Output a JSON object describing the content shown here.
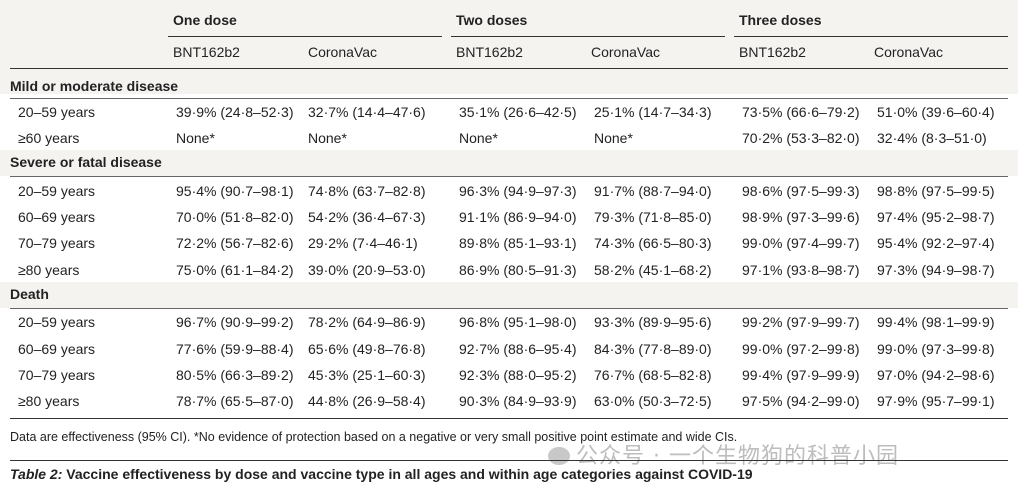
{
  "table": {
    "groups": [
      "One dose",
      "Two doses",
      "Three doses"
    ],
    "vaccines": [
      "BNT162b2",
      "CoronaVac",
      "BNT162b2",
      "CoronaVac",
      "BNT162b2",
      "CoronaVac"
    ],
    "sections": [
      {
        "title": "Mild or moderate disease",
        "rows": [
          {
            "label": "20–59 years",
            "cells": [
              "39·9% (24·8–52·3)",
              "32·7% (14·4–47·6)",
              "35·1% (26·6–42·5)",
              "25·1% (14·7–34·3)",
              "73·5% (66·6–79·2)",
              "51·0% (39·6–60·4)"
            ]
          },
          {
            "label": "≥60 years",
            "cells": [
              "None*",
              "None*",
              "None*",
              "None*",
              "70·2% (53·3–82·0)",
              "32·4% (8·3–51·0)"
            ]
          }
        ]
      },
      {
        "title": "Severe or fatal disease",
        "rows": [
          {
            "label": "20–59 years",
            "cells": [
              "95·4% (90·7–98·1)",
              "74·8% (63·7–82·8)",
              "96·3% (94·9–97·3)",
              "91·7% (88·7–94·0)",
              "98·6% (97·5–99·3)",
              "98·8% (97·5–99·5)"
            ]
          },
          {
            "label": "60–69 years",
            "cells": [
              "70·0% (51·8–82·0)",
              "54·2% (36·4–67·3)",
              "91·1% (86·9–94·0)",
              "79·3% (71·8–85·0)",
              "98·9% (97·3–99·6)",
              "97·4% (95·2–98·7)"
            ]
          },
          {
            "label": "70–79 years",
            "cells": [
              "72·2% (56·7–82·6)",
              "29·2% (7·4–46·1)",
              "89·8% (85·1–93·1)",
              "74·3% (66·5–80·3)",
              "99·0% (97·4–99·7)",
              "95·4% (92·2–97·4)"
            ]
          },
          {
            "label": "≥80 years",
            "cells": [
              "75·0% (61·1–84·2)",
              "39·0% (20·9–53·0)",
              "86·9% (80·5–91·3)",
              "58·2% (45·1–68·2)",
              "97·1% (93·8–98·7)",
              "97·3% (94·9–98·7)"
            ]
          }
        ]
      },
      {
        "title": "Death",
        "rows": [
          {
            "label": "20–59 years",
            "cells": [
              "96·7% (90·9–99·2)",
              "78·2% (64·9–86·9)",
              "96·8% (95·1–98·0)",
              "93·3% (89·9–95·6)",
              "99·2% (97·9–99·7)",
              "99·4% (98·1–99·9)"
            ]
          },
          {
            "label": "60–69 years",
            "cells": [
              "77·6% (59·9–88·4)",
              "65·6% (49·8–76·8)",
              "92·7% (88·6–95·4)",
              "84·3% (77·8–89·0)",
              "99·0% (97·2–99·8)",
              "99·0% (97·3–99·8)"
            ]
          },
          {
            "label": "70–79 years",
            "cells": [
              "80·5% (66·3–89·2)",
              "45·3% (25·1–60·3)",
              "92·3% (88·0–95·2)",
              "76·7% (68·5–82·8)",
              "99·4% (97·9–99·9)",
              "97·0% (94·2–98·6)"
            ]
          },
          {
            "label": "≥80 years",
            "cells": [
              "78·7% (65·5–87·0)",
              "44·8% (26·9–58·4)",
              "90·3% (84·9–93·9)",
              "63·0% (50·3–72·5)",
              "97·5% (94·2–99·0)",
              "97·9% (95·7–99·1)"
            ]
          }
        ]
      }
    ],
    "footnote": "Data are effectiveness (95% CI). *No evidence of protection based on a negative or very small positive point estimate and wide CIs.",
    "caption_label": "Table 2:",
    "caption_text": "Vaccine effectiveness by dose and vaccine type in all ages and within age categories against COVID-19"
  },
  "watermark": "公众号 · 一个生物狗的科普小园",
  "colors": {
    "header_bg": "#f5f3f0",
    "rule": "#333333",
    "text": "#222222"
  }
}
